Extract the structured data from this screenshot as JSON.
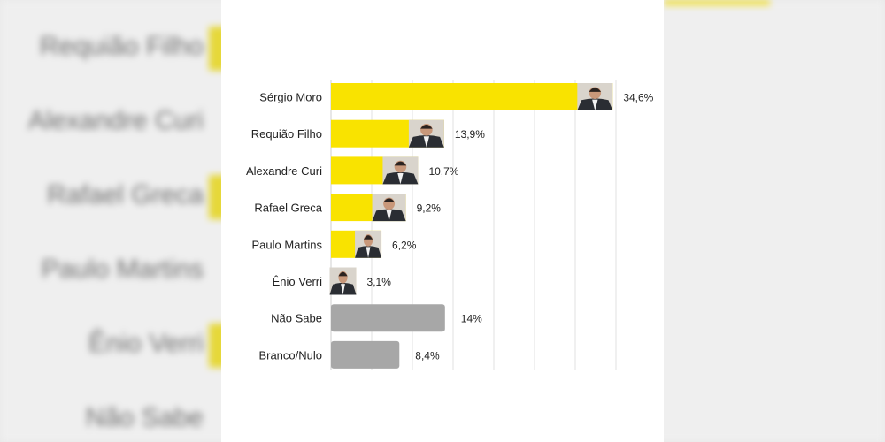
{
  "chart_data": {
    "type": "bar",
    "orientation": "horizontal",
    "title": "",
    "xlabel": "",
    "ylabel": "",
    "categories": [
      "Sérgio Moro",
      "Requião Filho",
      "Alexandre Curi",
      "Rafael Greca",
      "Paulo Martins",
      "Ênio Verri",
      "Não Sabe",
      "Branco/Nulo"
    ],
    "values": [
      34.6,
      13.9,
      10.7,
      9.2,
      6.2,
      3.1,
      14,
      8.4
    ],
    "value_labels": [
      "34,6%",
      "13,9%",
      "10,7%",
      "9,2%",
      "6,2%",
      "3,1%",
      "14%",
      "8,4%"
    ],
    "bar_colors": [
      "#f9e300",
      "#f9e300",
      "#f9e300",
      "#f9e300",
      "#f9e300",
      "#f9e300",
      "#a7a7a7",
      "#a7a7a7"
    ],
    "candidate_photos": [
      true,
      true,
      true,
      true,
      true,
      true,
      false,
      false
    ],
    "xlim": [
      0,
      35
    ],
    "grid": true
  },
  "colors": {
    "candidate_bar": "#f9e300",
    "other_bar": "#a7a7a7",
    "gridline": "#e2e2e2",
    "background": "#ffffff"
  },
  "background_labels": [
    "Requião Filho",
    "Alexandre Curi",
    "Rafael Greca",
    "Paulo Martins",
    "Ênio Verri",
    "Não Sabe"
  ]
}
